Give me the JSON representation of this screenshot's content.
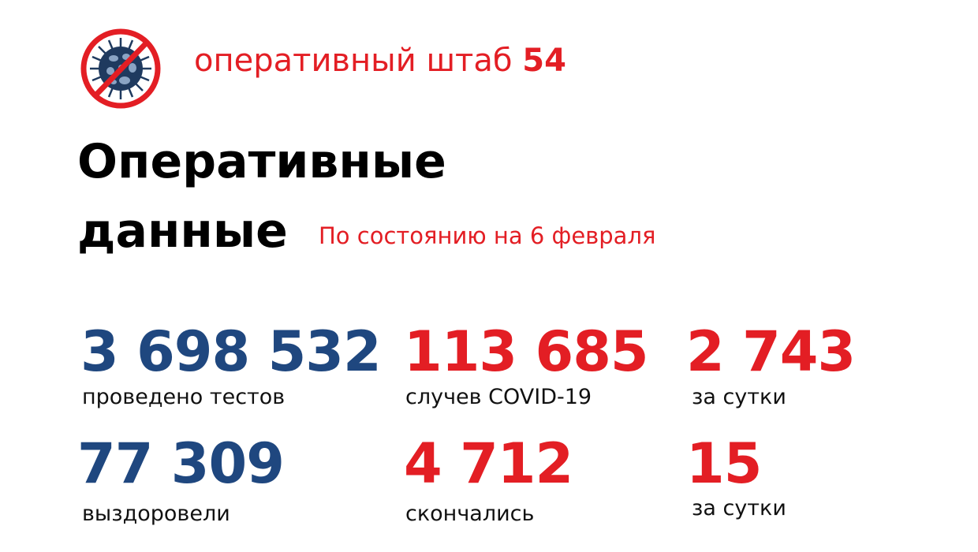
{
  "header": {
    "brand_text": "оперативный штаб",
    "brand_number": "54",
    "logo_icon": "no-virus-icon"
  },
  "title": {
    "line1": "Оперативные",
    "line2": "данные"
  },
  "date": "По состоянию на 6 февраля",
  "stats": [
    {
      "value": "3 698 532",
      "label": "проведено тестов"
    },
    {
      "value": "113 685",
      "label": "случев COVID-19"
    },
    {
      "value": "2 743",
      "label": "за сутки"
    },
    {
      "value": "77 309",
      "label": "выздоровели"
    },
    {
      "value": "4 712",
      "label": "скончались"
    },
    {
      "value": "15",
      "label": "за сутки"
    }
  ],
  "colors": {
    "red": "#e31e24",
    "blue": "#1f477f"
  }
}
